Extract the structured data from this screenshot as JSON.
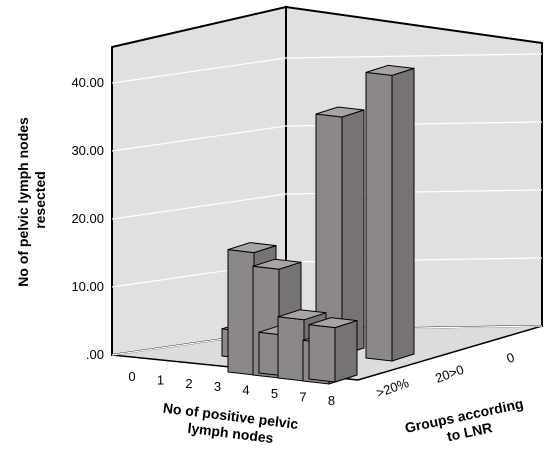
{
  "chart_data": {
    "type": "bar",
    "subtype": "3d-bar",
    "title": "",
    "ylabel_lines": [
      "No of pelvic lymph nodes",
      "resected"
    ],
    "xlabel_lines": [
      "No of positive pelvic",
      "lymph nodes"
    ],
    "zlabel_lines": [
      "Groups according",
      "to LNR"
    ],
    "x_categories": [
      "0",
      "1",
      "2",
      "3",
      "4",
      "5",
      "7",
      "8"
    ],
    "z_categories": [
      ">20%",
      "20>0",
      "0"
    ],
    "y_ticks": [
      ".00",
      "10.00",
      "20.00",
      "30.00",
      "40.00"
    ],
    "ylim": [
      0,
      45
    ],
    "grid": true,
    "bar_color": "#8c8888",
    "wall_color": "#e0e0e0",
    "bars": [
      {
        "x": "2",
        "group": "20>0",
        "value": 4
      },
      {
        "x": "3",
        "group": "20>0",
        "value": 1
      },
      {
        "x": "4",
        "group": "0",
        "value": 35
      },
      {
        "x": "4",
        "group": ">20%",
        "value": 18
      },
      {
        "x": "5",
        "group": ">20%",
        "value": 16
      },
      {
        "x": "5",
        "group": ">20%",
        "value": 6
      },
      {
        "x": "7",
        "group": "0",
        "value": 42
      },
      {
        "x": "7",
        "group": ">20%",
        "value": 9
      },
      {
        "x": "8",
        "group": ">20%",
        "value": 6
      },
      {
        "x": "8",
        "group": ">20%",
        "value": 8
      }
    ]
  }
}
